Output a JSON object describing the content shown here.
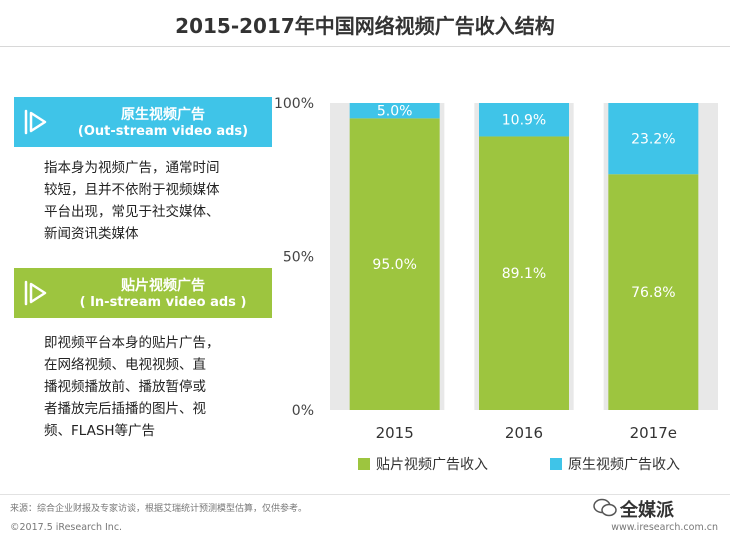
{
  "title": "2015-2017年中国网络视频广告收入结构",
  "panel": {
    "outstream": {
      "title_cn": "原生视频广告",
      "title_en": "(Out-stream video ads)",
      "desc": [
        "指本身为视频广告，通常时间",
        "较短，且并不依附于视频媒体",
        "平台出现，常见于社交媒体、",
        "新闻资讯类媒体"
      ]
    },
    "instream": {
      "title_cn": "贴片视频广告",
      "title_en": "( In-stream video ads )",
      "desc": [
        "即视频平台本身的贴片广告，",
        "在网络视频、电视视频、直",
        "播视频播放前、播放暂停或",
        "者播放完后插播的图片、视",
        "频、FLASH等广告"
      ]
    }
  },
  "chart_data": {
    "type": "bar",
    "stacked": true,
    "categories": [
      "2015",
      "2016",
      "2017e"
    ],
    "series": [
      {
        "name": "贴片视频广告收入",
        "color": "#9dc53f",
        "values": [
          95.0,
          89.1,
          76.8
        ],
        "labels": [
          "95.0%",
          "89.1%",
          "76.8%"
        ]
      },
      {
        "name": "原生视频广告收入",
        "color": "#3fc4e8",
        "values": [
          5.0,
          10.9,
          23.2
        ],
        "labels": [
          "5.0%",
          "10.9%",
          "23.2%"
        ]
      }
    ],
    "yticks": [
      "0%",
      "50%",
      "100%"
    ],
    "ylim": [
      0,
      100
    ],
    "legend": "bottom",
    "background_band": "#e8e8e8"
  },
  "footer": {
    "source": "来源：综合企业财报及专家访谈，根据艾瑞统计预测模型估算，仅供参考。",
    "copyright": "©2017.5 iResearch Inc.",
    "url": "www.iresearch.com.cn",
    "watermark": "全媒派"
  }
}
